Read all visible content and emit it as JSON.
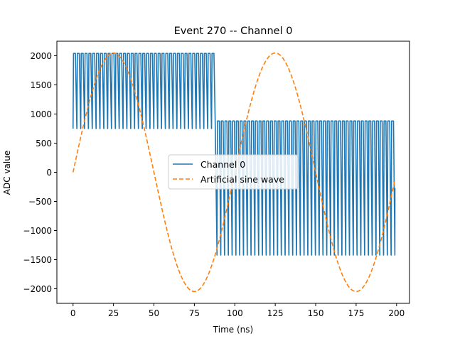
{
  "chart_data": {
    "type": "line",
    "title": "Event 270 -- Channel 0",
    "xlabel": "Time (ns)",
    "ylabel": "ADC value",
    "xlim": [
      -10,
      208
    ],
    "ylim": [
      -2250,
      2250
    ],
    "xticks": [
      0,
      25,
      50,
      75,
      100,
      125,
      150,
      175,
      200
    ],
    "yticks": [
      -2000,
      -1500,
      -1000,
      -500,
      0,
      500,
      1000,
      1500,
      2000
    ],
    "grid": false,
    "legend_position": "center",
    "series": [
      {
        "name": "Channel 0",
        "color": "#1f77b4",
        "style": "solid",
        "x_start": 0,
        "x_step": 1,
        "length": 200,
        "description_visible": "square-like oscillation",
        "segments": [
          {
            "x_from": 0,
            "x_to": 88,
            "low": 750,
            "high": 2040,
            "period": 2.35
          },
          {
            "x_from": 89,
            "x_to": 199,
            "low": -1420,
            "high": 880,
            "period": 2.35
          }
        ],
        "end_value": -270
      },
      {
        "name": "Artificial sine wave",
        "color": "#ff7f0e",
        "style": "dashed",
        "x_start": 0,
        "x_step": 1,
        "length": 200,
        "amplitude": 2048,
        "period": 100,
        "phase": 0
      }
    ]
  }
}
